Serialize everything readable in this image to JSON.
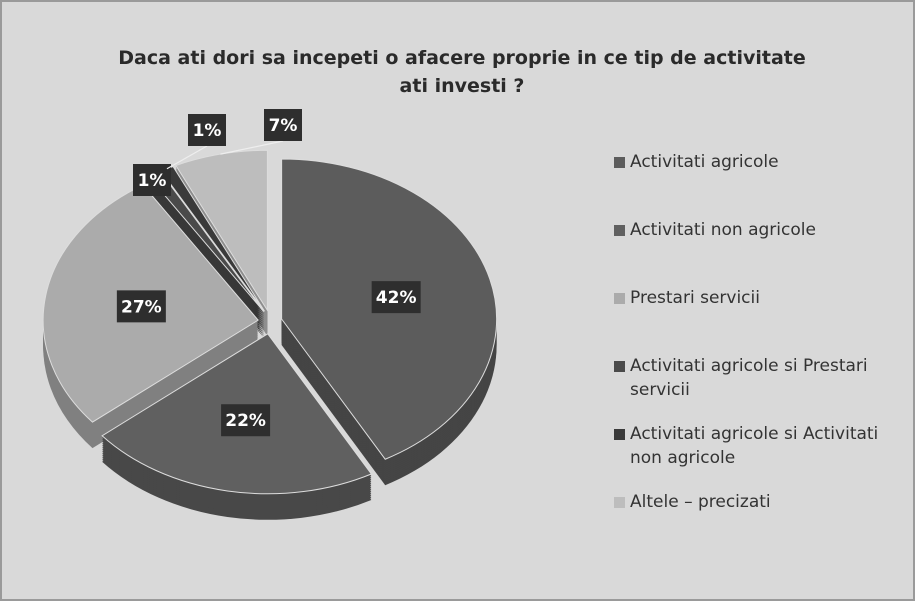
{
  "chart_data": {
    "type": "pie",
    "title": "Daca ati dori sa incepeti o afacere proprie in ce tip de activitate ati investi ?",
    "categories": [
      "Activitati agricole",
      "Activitati non agricole",
      "Prestari servicii",
      "Activitati agricole  si Prestari servicii",
      "Activitati agricole  si Activitati non agricole",
      "Altele – precizati"
    ],
    "values": [
      42,
      22,
      27,
      1,
      1,
      7
    ],
    "value_labels": [
      "42%",
      "22%",
      "27%",
      "1%",
      "1%",
      "7%"
    ],
    "colors": [
      "#5c5c5c",
      "#606060",
      "#ababab",
      "#4a4a4a",
      "#3a3a3a",
      "#bdbdbd"
    ],
    "legend": "right"
  }
}
